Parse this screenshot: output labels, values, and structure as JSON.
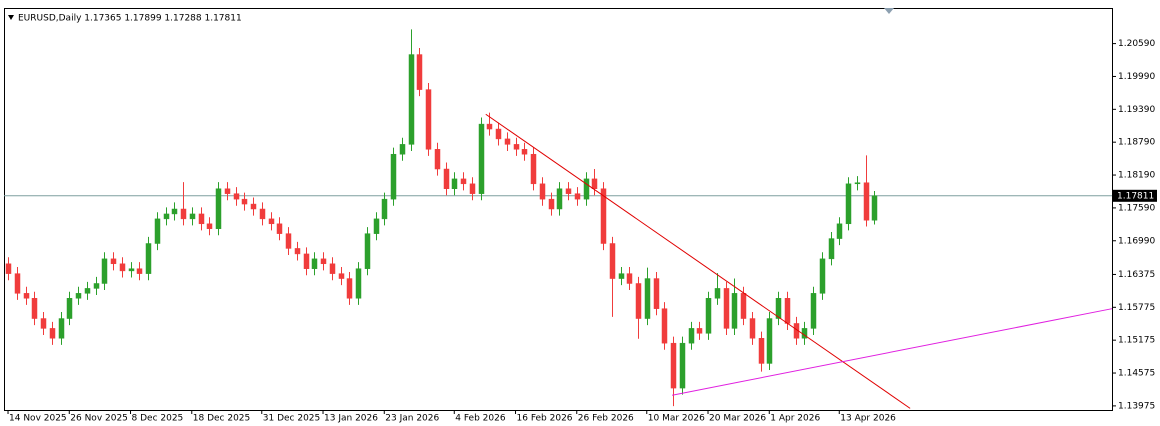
{
  "chart_data": {
    "type": "candlestick",
    "title": "EURUSD,Daily  1.17365 1.17899 1.17288 1.17811",
    "bull_color": "#2ca02c",
    "bear_color": "#f03c3c",
    "current_price": 1.17811,
    "current_price_color": "#7f9f9f",
    "xlim": [
      -0.46,
      126.17
    ],
    "ylim": [
      1.139,
      1.2124
    ],
    "yticks": [
      {
        "value": 1.2059,
        "label": "1.20590"
      },
      {
        "value": 1.1999,
        "label": "1.19990"
      },
      {
        "value": 1.1939,
        "label": "1.19390"
      },
      {
        "value": 1.1879,
        "label": "1.18790"
      },
      {
        "value": 1.1819,
        "label": "1.18190"
      },
      {
        "value": 1.1759,
        "label": "1.17590"
      },
      {
        "value": 1.1699,
        "label": "1.16990"
      },
      1.16375,
      1.15775,
      1.15175,
      1.14575,
      1.13975
    ],
    "xticks": [
      {
        "value": 0,
        "label": "14 Nov 2025"
      },
      {
        "value": 7,
        "label": "26 Nov 2025"
      },
      {
        "value": 14,
        "label": "8 Dec 2025"
      },
      {
        "value": 21,
        "label": "18 Dec 2025"
      },
      {
        "value": 29,
        "label": "31 Dec 2025"
      },
      {
        "value": 36,
        "label": "13 Jan 2026"
      },
      {
        "value": 43,
        "label": "23 Jan 2026"
      },
      {
        "value": 51,
        "label": "4 Feb 2026"
      },
      {
        "value": 58,
        "label": "16 Feb 2026"
      },
      {
        "value": 65,
        "label": "26 Feb 2026"
      },
      {
        "value": 73,
        "label": "10 Mar 2026"
      },
      {
        "value": 80,
        "label": "20 Mar 2026"
      },
      {
        "value": 87,
        "label": "1 Apr 2026"
      },
      {
        "value": 95,
        "label": "13 Apr 2026"
      }
    ],
    "trendlines": [
      {
        "color": "#e00000",
        "x": [
          54.6,
          103.1
        ],
        "y": [
          1.193,
          1.1393
        ]
      },
      {
        "color": "#e020e0",
        "x": [
          75.9,
          126.17
        ],
        "y": [
          1.1417,
          1.1575
        ]
      }
    ],
    "ohlc": [
      [
        1.1657,
        1.1669,
        1.1627,
        1.1639
      ],
      [
        1.1639,
        1.1651,
        1.1591,
        1.1603
      ],
      [
        1.1603,
        1.1615,
        1.1582,
        1.1594
      ],
      [
        1.1594,
        1.1606,
        1.1545,
        1.1557
      ],
      [
        1.1557,
        1.1569,
        1.1527,
        1.1539
      ],
      [
        1.1539,
        1.1551,
        1.1509,
        1.1521
      ],
      [
        1.1521,
        1.1569,
        1.1509,
        1.1557
      ],
      [
        1.1557,
        1.1606,
        1.1545,
        1.1594
      ],
      [
        1.1594,
        1.1615,
        1.1582,
        1.1603
      ],
      [
        1.1603,
        1.1624,
        1.1591,
        1.1612
      ],
      [
        1.1612,
        1.1633,
        1.16,
        1.1621
      ],
      [
        1.1621,
        1.1678,
        1.1609,
        1.1666
      ],
      [
        1.1666,
        1.1678,
        1.1645,
        1.1657
      ],
      [
        1.1657,
        1.1669,
        1.1632,
        1.1644
      ],
      [
        1.1644,
        1.166,
        1.1632,
        1.1648
      ],
      [
        1.1648,
        1.166,
        1.1627,
        1.1639
      ],
      [
        1.1639,
        1.1706,
        1.1627,
        1.1694
      ],
      [
        1.1694,
        1.1751,
        1.1682,
        1.1739
      ],
      [
        1.1739,
        1.176,
        1.1727,
        1.1748
      ],
      [
        1.1748,
        1.1769,
        1.1736,
        1.1757
      ],
      [
        1.1757,
        1.1806,
        1.1727,
        1.1739
      ],
      [
        1.1739,
        1.176,
        1.1727,
        1.1748
      ],
      [
        1.1748,
        1.176,
        1.1718,
        1.173
      ],
      [
        1.173,
        1.1742,
        1.1709,
        1.1721
      ],
      [
        1.1721,
        1.1806,
        1.1709,
        1.1794
      ],
      [
        1.1794,
        1.1806,
        1.1773,
        1.1785
      ],
      [
        1.1785,
        1.1797,
        1.1763,
        1.1775
      ],
      [
        1.1775,
        1.1787,
        1.1754,
        1.1766
      ],
      [
        1.1766,
        1.1778,
        1.1745,
        1.1757
      ],
      [
        1.1757,
        1.1769,
        1.1727,
        1.1739
      ],
      [
        1.1739,
        1.1751,
        1.1718,
        1.173
      ],
      [
        1.173,
        1.1742,
        1.17,
        1.1712
      ],
      [
        1.1712,
        1.1724,
        1.1673,
        1.1685
      ],
      [
        1.1685,
        1.1697,
        1.1663,
        1.1675
      ],
      [
        1.1675,
        1.1687,
        1.1636,
        1.1648
      ],
      [
        1.1648,
        1.1678,
        1.1636,
        1.1666
      ],
      [
        1.1666,
        1.1678,
        1.1645,
        1.1657
      ],
      [
        1.1657,
        1.1669,
        1.1627,
        1.1639
      ],
      [
        1.1639,
        1.1651,
        1.1618,
        1.163
      ],
      [
        1.163,
        1.1642,
        1.1582,
        1.1594
      ],
      [
        1.1594,
        1.166,
        1.1582,
        1.1648
      ],
      [
        1.1648,
        1.1724,
        1.1636,
        1.1712
      ],
      [
        1.1712,
        1.1751,
        1.17,
        1.1739
      ],
      [
        1.1739,
        1.1787,
        1.1727,
        1.1775
      ],
      [
        1.1775,
        1.1869,
        1.1763,
        1.1857
      ],
      [
        1.1857,
        1.1887,
        1.1845,
        1.1875
      ],
      [
        1.1875,
        1.2085,
        1.1863,
        1.2039
      ],
      [
        1.2039,
        1.2051,
        1.1963,
        1.1975
      ],
      [
        1.1975,
        1.1987,
        1.1854,
        1.1866
      ],
      [
        1.1866,
        1.1878,
        1.1818,
        1.183
      ],
      [
        1.183,
        1.1842,
        1.1782,
        1.1794
      ],
      [
        1.1794,
        1.1824,
        1.1782,
        1.1812
      ],
      [
        1.1812,
        1.1824,
        1.1791,
        1.1803
      ],
      [
        1.1803,
        1.1815,
        1.1773,
        1.1785
      ],
      [
        1.1785,
        1.1924,
        1.1773,
        1.1912
      ],
      [
        1.1912,
        1.1933,
        1.1891,
        1.1903
      ],
      [
        1.1903,
        1.1915,
        1.1873,
        1.1885
      ],
      [
        1.1885,
        1.1897,
        1.1863,
        1.1875
      ],
      [
        1.1875,
        1.1887,
        1.1854,
        1.1866
      ],
      [
        1.1866,
        1.1878,
        1.1845,
        1.1857
      ],
      [
        1.1857,
        1.1869,
        1.1791,
        1.1803
      ],
      [
        1.1803,
        1.1815,
        1.1763,
        1.1775
      ],
      [
        1.1775,
        1.1787,
        1.1745,
        1.1757
      ],
      [
        1.1757,
        1.1806,
        1.1745,
        1.1794
      ],
      [
        1.1794,
        1.1806,
        1.1773,
        1.1785
      ],
      [
        1.1785,
        1.1797,
        1.1763,
        1.1775
      ],
      [
        1.1775,
        1.1824,
        1.1763,
        1.1812
      ],
      [
        1.1812,
        1.183,
        1.1782,
        1.1794
      ],
      [
        1.1794,
        1.1806,
        1.1682,
        1.1694
      ],
      [
        1.1694,
        1.1706,
        1.156,
        1.163
      ],
      [
        1.163,
        1.1651,
        1.1618,
        1.1639
      ],
      [
        1.1639,
        1.1651,
        1.1609,
        1.1621
      ],
      [
        1.1621,
        1.1633,
        1.152,
        1.1557
      ],
      [
        1.1557,
        1.165,
        1.1545,
        1.163
      ],
      [
        1.163,
        1.1642,
        1.1563,
        1.1575
      ],
      [
        1.1575,
        1.1587,
        1.15,
        1.1512
      ],
      [
        1.1512,
        1.1524,
        1.1397,
        1.143
      ],
      [
        1.143,
        1.1524,
        1.1418,
        1.1512
      ],
      [
        1.1512,
        1.1551,
        1.15,
        1.1539
      ],
      [
        1.1539,
        1.1551,
        1.1518,
        1.153
      ],
      [
        1.153,
        1.1606,
        1.1518,
        1.1594
      ],
      [
        1.1594,
        1.164,
        1.1582,
        1.1612
      ],
      [
        1.1612,
        1.1624,
        1.1527,
        1.1539
      ],
      [
        1.1539,
        1.163,
        1.1527,
        1.1603
      ],
      [
        1.1603,
        1.1615,
        1.1545,
        1.1557
      ],
      [
        1.1557,
        1.1569,
        1.1509,
        1.1521
      ],
      [
        1.1521,
        1.1533,
        1.146,
        1.1475
      ],
      [
        1.1475,
        1.1569,
        1.1463,
        1.1557
      ],
      [
        1.1557,
        1.1606,
        1.1545,
        1.1594
      ],
      [
        1.1594,
        1.1606,
        1.1536,
        1.1548
      ],
      [
        1.1548,
        1.156,
        1.1509,
        1.1521
      ],
      [
        1.1521,
        1.1551,
        1.1509,
        1.1539
      ],
      [
        1.1539,
        1.1615,
        1.1527,
        1.1603
      ],
      [
        1.1603,
        1.1678,
        1.1591,
        1.1666
      ],
      [
        1.1666,
        1.1715,
        1.1654,
        1.1703
      ],
      [
        1.1703,
        1.1742,
        1.1691,
        1.173
      ],
      [
        1.173,
        1.1815,
        1.1718,
        1.1803
      ],
      [
        1.1803,
        1.1817,
        1.1791,
        1.1805
      ],
      [
        1.1805,
        1.1855,
        1.1725,
        1.17365
      ],
      [
        1.17365,
        1.17899,
        1.17288,
        1.17811
      ]
    ]
  }
}
